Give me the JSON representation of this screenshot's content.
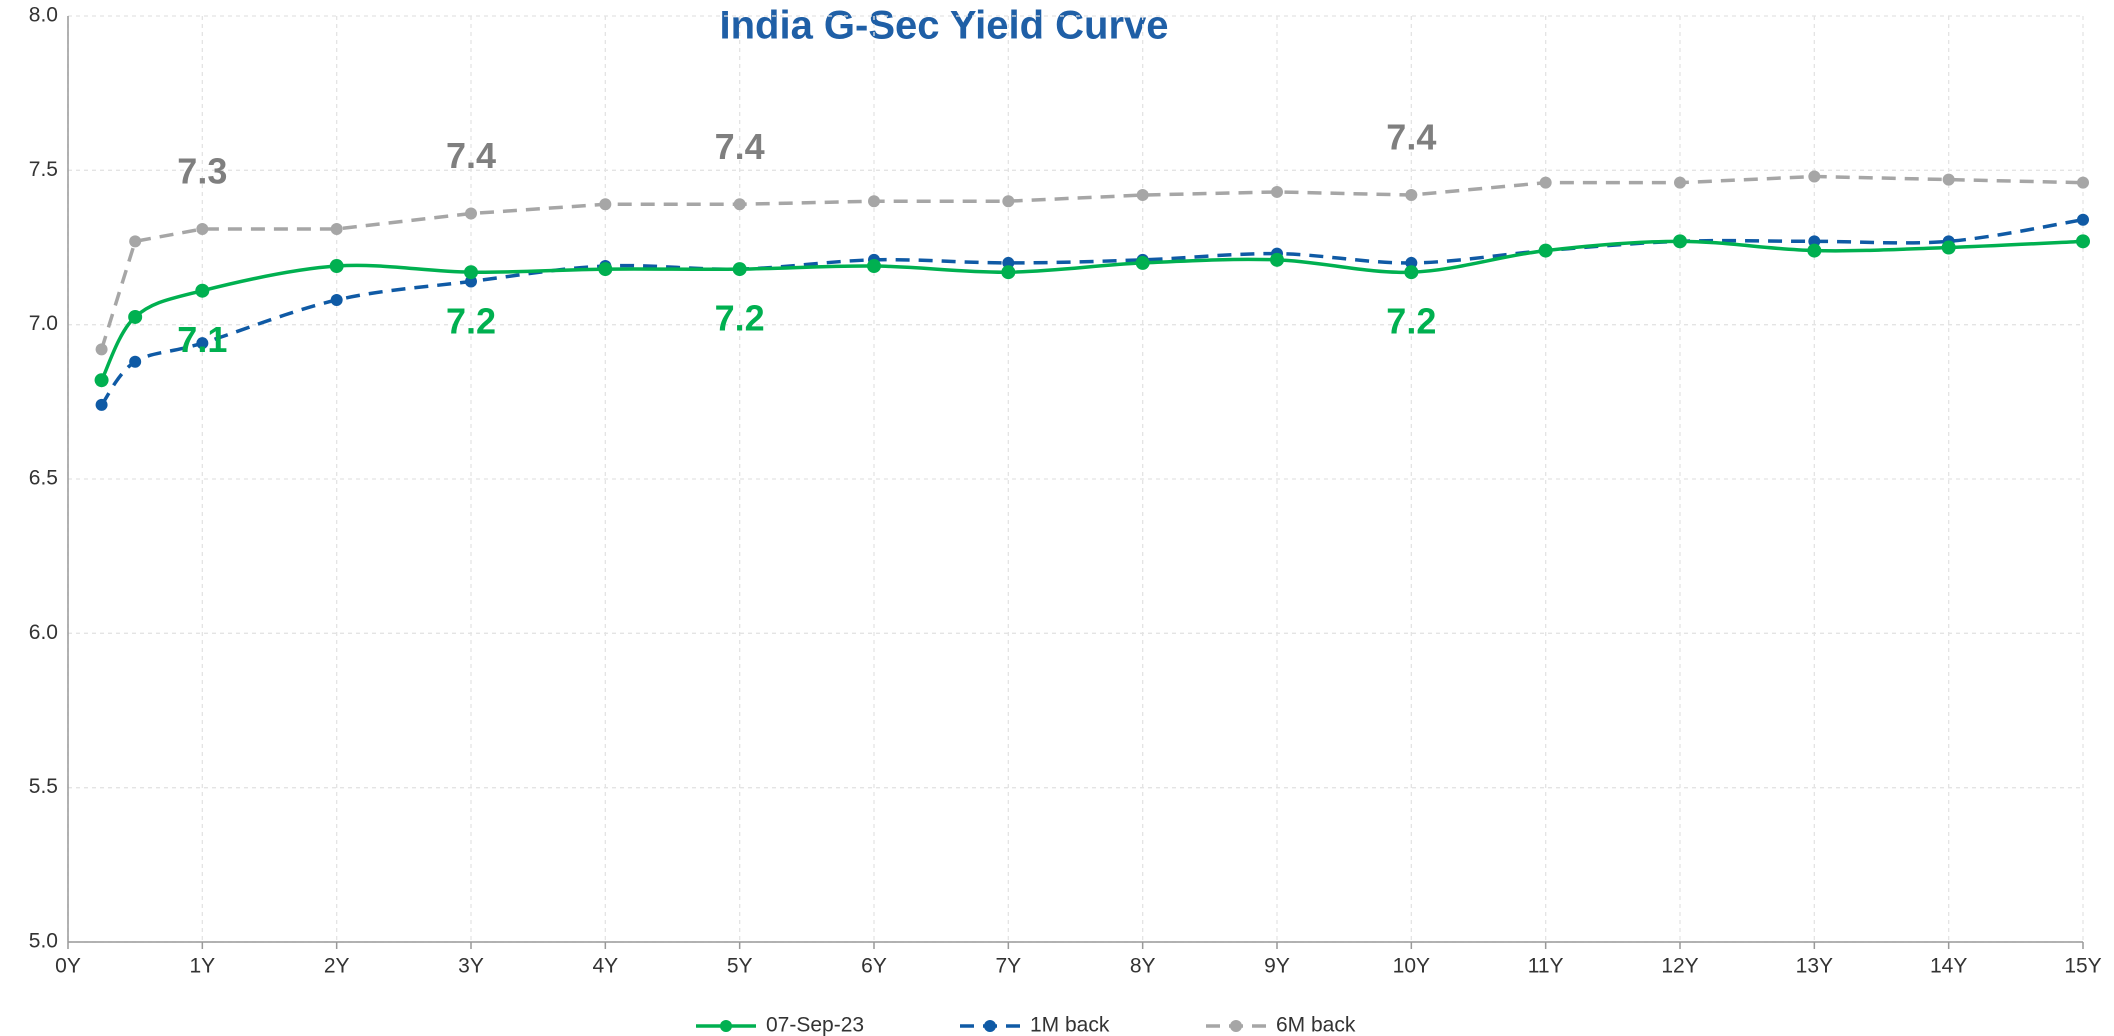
{
  "chart_data": {
    "type": "line",
    "title": "India G-Sec Yield Curve",
    "x": [
      0.25,
      0.5,
      1,
      2,
      3,
      4,
      5,
      6,
      7,
      8,
      9,
      10,
      11,
      12,
      13,
      14,
      15
    ],
    "xlim": [
      0,
      15
    ],
    "xticks": [
      {
        "value": 0,
        "label": "0Y"
      },
      {
        "value": 1,
        "label": "1Y"
      },
      {
        "value": 2,
        "label": "2Y"
      },
      {
        "value": 3,
        "label": "3Y"
      },
      {
        "value": 4,
        "label": "4Y"
      },
      {
        "value": 5,
        "label": "5Y"
      },
      {
        "value": 6,
        "label": "6Y"
      },
      {
        "value": 7,
        "label": "7Y"
      },
      {
        "value": 8,
        "label": "8Y"
      },
      {
        "value": 9,
        "label": "9Y"
      },
      {
        "value": 10,
        "label": "10Y"
      },
      {
        "value": 11,
        "label": "11Y"
      },
      {
        "value": 12,
        "label": "12Y"
      },
      {
        "value": 13,
        "label": "13Y"
      },
      {
        "value": 14,
        "label": "14Y"
      },
      {
        "value": 15,
        "label": "15Y"
      }
    ],
    "ylim": [
      5,
      8
    ],
    "yticks": [
      {
        "value": 5,
        "label": "5.0"
      },
      5.5,
      {
        "value": 6,
        "label": "6.0"
      },
      6.5,
      {
        "value": 7,
        "label": "7.0"
      },
      7.5,
      {
        "value": 8,
        "label": "8.0"
      }
    ],
    "grid": true,
    "legend": "bottom",
    "series": [
      {
        "name": "07-Sep-23",
        "color": "#00b050",
        "dash": "solid",
        "smooth": true,
        "values": [
          6.82,
          7.025,
          7.11,
          7.19,
          7.17,
          7.18,
          7.18,
          7.19,
          7.17,
          7.2,
          7.21,
          7.17,
          7.24,
          7.27,
          7.24,
          7.25,
          7.27
        ],
        "value_labels": [
          null,
          null,
          "7.1",
          null,
          "7.2",
          null,
          "7.2",
          null,
          null,
          null,
          null,
          "7.2",
          null,
          null,
          null,
          null,
          null
        ],
        "label_position": "below"
      },
      {
        "name": "1M back",
        "color": "#0f5aa5",
        "dash": "dashed",
        "smooth": true,
        "values": [
          6.74,
          6.88,
          6.94,
          7.08,
          7.14,
          7.19,
          7.18,
          7.21,
          7.2,
          7.21,
          7.23,
          7.2,
          7.24,
          7.27,
          7.27,
          7.27,
          7.34
        ]
      },
      {
        "name": "6M back",
        "color": "#a6a6a6",
        "dash": "dashed",
        "smooth": false,
        "label_color": "#7f7f7f",
        "values": [
          6.92,
          7.27,
          7.31,
          7.31,
          7.36,
          7.39,
          7.39,
          7.4,
          7.4,
          7.42,
          7.43,
          7.42,
          7.46,
          7.46,
          7.48,
          7.47,
          7.46
        ],
        "value_labels": [
          null,
          null,
          "7.3",
          null,
          "7.4",
          null,
          "7.4",
          null,
          null,
          null,
          null,
          "7.4",
          null,
          null,
          null,
          null,
          null
        ],
        "label_position": "above"
      }
    ]
  }
}
